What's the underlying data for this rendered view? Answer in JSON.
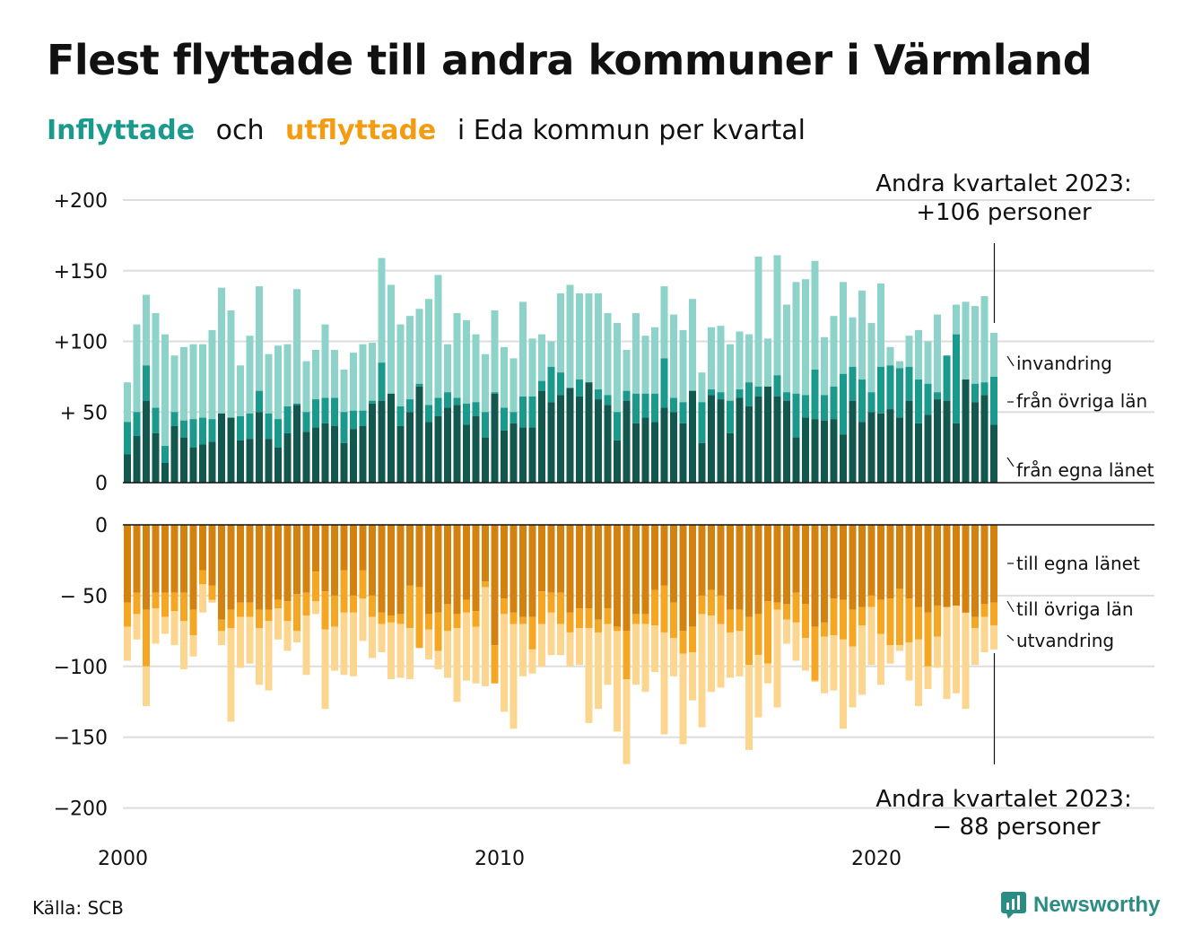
{
  "title": "Flest flyttade till andra kommuner i Värmland",
  "subtitle": {
    "part1": "Inflyttade",
    "part2": "och",
    "part3": "utflyttade",
    "part4": "i Eda kommun per kvartal"
  },
  "source": "Källa: SCB",
  "brand": "Newsworthy",
  "colors": {
    "in_egna": "#13584f",
    "in_ovriga": "#1a9a8c",
    "in_invandring": "#8ed3c9",
    "ut_egna": "#d4820f",
    "ut_ovriga": "#f5a623",
    "ut_utvandring": "#fcd68e",
    "grid": "#dddddd",
    "accent_in": "#1a9a8c",
    "accent_ut": "#f39c12",
    "brand": "#2a8c82"
  },
  "chart_data": [
    {
      "type": "bar",
      "stacked": true,
      "x_label_years": [
        "2000",
        "2010",
        "2020"
      ],
      "y_ticks": [
        "0",
        "+ 50",
        "+100",
        "+150",
        "+200"
      ],
      "ylim": [
        0,
        200
      ],
      "grid": true,
      "series_labels": [
        "invandring",
        "från övriga län",
        "från egna länet"
      ],
      "annotation": [
        "Andra kvartalet 2023:",
        "+106 personer"
      ],
      "series": [
        {
          "name": "från egna länet",
          "values": [
            20,
            33,
            58,
            35,
            14,
            40,
            32,
            25,
            27,
            29,
            49,
            46,
            30,
            31,
            50,
            31,
            25,
            35,
            55,
            36,
            39,
            42,
            40,
            28,
            38,
            40,
            56,
            58,
            63,
            40,
            50,
            68,
            43,
            47,
            53,
            55,
            41,
            47,
            32,
            63,
            37,
            42,
            39,
            39,
            65,
            57,
            62,
            67,
            61,
            71,
            59,
            55,
            30,
            58,
            42,
            46,
            43,
            53,
            50,
            42,
            65,
            28,
            62,
            59,
            35,
            60,
            54,
            61,
            68,
            61,
            58,
            32,
            46,
            45,
            44,
            45,
            34,
            58,
            43,
            50,
            49,
            52,
            46,
            58,
            42,
            48,
            59,
            58,
            42,
            73,
            57,
            62,
            41
          ],
          "series_cum_ovriga": [
            43,
            50,
            83,
            53,
            26,
            50,
            44,
            45,
            46,
            45,
            49,
            46,
            47,
            49,
            65,
            49,
            45,
            54,
            56,
            50,
            59,
            60,
            60,
            50,
            51,
            51,
            58,
            85,
            63,
            54,
            59,
            70,
            55,
            60,
            64,
            60,
            56,
            57,
            50,
            64,
            53,
            50,
            61,
            61,
            72,
            82,
            78,
            67,
            73,
            71,
            66,
            62,
            50,
            65,
            63,
            63,
            63,
            88,
            60,
            57,
            65,
            57,
            66,
            64,
            58,
            66,
            71,
            68,
            68,
            76,
            64,
            63,
            62,
            80,
            62,
            68,
            77,
            82,
            73,
            64,
            82,
            83,
            81,
            82,
            73,
            70,
            64,
            90,
            105,
            62,
            70,
            71,
            75
          ]
        },
        {
          "name": "från övriga län",
          "values": []
        },
        {
          "name": "invandring",
          "totals": [
            71,
            112,
            133,
            120,
            105,
            90,
            96,
            98,
            98,
            108,
            138,
            122,
            83,
            104,
            139,
            91,
            97,
            98,
            137,
            86,
            94,
            112,
            94,
            80,
            92,
            98,
            99,
            159,
            140,
            112,
            118,
            123,
            130,
            147,
            98,
            120,
            115,
            105,
            91,
            122,
            96,
            88,
            128,
            102,
            105,
            100,
            134,
            140,
            134,
            134,
            134,
            120,
            113,
            94,
            120,
            104,
            110,
            139,
            119,
            108,
            130,
            78,
            110,
            111,
            98,
            107,
            105,
            160,
            102,
            161,
            126,
            142,
            144,
            157,
            103,
            118,
            142,
            117,
            136,
            113,
            141,
            96,
            86,
            104,
            108,
            100,
            119,
            89,
            126,
            128,
            125,
            132,
            106
          ]
        }
      ]
    },
    {
      "type": "bar",
      "stacked": true,
      "y_ticks": [
        "0",
        "− 50",
        "−100",
        "−150",
        "−200"
      ],
      "ylim": [
        -200,
        0
      ],
      "grid": true,
      "series_labels": [
        "till egna länet",
        "till övriga län",
        "utvandring"
      ],
      "annotation": [
        "Andra kvartalet 2023:",
        "− 88 personer"
      ],
      "series": [
        {
          "name": "till egna länet",
          "values": [
            -55,
            -48,
            -60,
            -48,
            -48,
            -48,
            -48,
            -60,
            -32,
            -43,
            -67,
            -60,
            -55,
            -55,
            -60,
            -60,
            -53,
            -54,
            -49,
            -48,
            -33,
            -47,
            -50,
            -32,
            -50,
            -32,
            -50,
            -62,
            -64,
            -63,
            -43,
            -44,
            -63,
            -62,
            -56,
            -63,
            -53,
            -61,
            -40,
            -85,
            -52,
            -62,
            -65,
            -65,
            -47,
            -48,
            -48,
            -62,
            -59,
            -59,
            -67,
            -59,
            -72,
            -75,
            -63,
            -63,
            -46,
            -43,
            -55,
            -75,
            -72,
            -50,
            -46,
            -50,
            -60,
            -60,
            -65,
            -63,
            -54,
            -55,
            -56,
            -48,
            -56,
            -72,
            -69,
            -52,
            -53,
            -60,
            -58,
            -50,
            -53,
            -52,
            -45,
            -52,
            -58,
            -62,
            -57,
            -60,
            -60,
            -63,
            -65,
            -56,
            -55
          ],
          "cum_ovriga": [
            -72,
            -63,
            -100,
            -59,
            -65,
            -61,
            -68,
            -78,
            -42,
            -53,
            -75,
            -73,
            -65,
            -65,
            -73,
            -68,
            -59,
            -68,
            -75,
            -64,
            -54,
            -74,
            -72,
            -62,
            -62,
            -52,
            -65,
            -70,
            -69,
            -70,
            -73,
            -87,
            -74,
            -89,
            -75,
            -73,
            -62,
            -72,
            -44,
            -112,
            -63,
            -70,
            -70,
            -88,
            -70,
            -62,
            -70,
            -76,
            -73,
            -73,
            -76,
            -70,
            -75,
            -109,
            -70,
            -70,
            -71,
            -76,
            -80,
            -91,
            -90,
            -63,
            -64,
            -70,
            -76,
            -75,
            -99,
            -92,
            -98,
            -60,
            -67,
            -69,
            -80,
            -110,
            -79,
            -78,
            -81,
            -86,
            -71,
            -58,
            -77,
            -85,
            -85,
            -83,
            -81,
            -100,
            -79,
            -58,
            -57,
            -62,
            -73,
            -65,
            -71
          ]
        },
        {
          "name": "till övriga län",
          "values": []
        },
        {
          "name": "utvandring",
          "totals": [
            -96,
            -81,
            -128,
            -84,
            -77,
            -85,
            -102,
            -93,
            -62,
            -55,
            -85,
            -139,
            -101,
            -98,
            -113,
            -117,
            -81,
            -89,
            -83,
            -106,
            -63,
            -130,
            -103,
            -106,
            -107,
            -82,
            -94,
            -90,
            -109,
            -108,
            -109,
            -82,
            -95,
            -102,
            -108,
            -125,
            -110,
            -112,
            -114,
            -100,
            -132,
            -144,
            -107,
            -105,
            -100,
            -92,
            -92,
            -100,
            -99,
            -140,
            -130,
            -113,
            -146,
            -169,
            -113,
            -118,
            -104,
            -148,
            -107,
            -155,
            -124,
            -143,
            -118,
            -115,
            -108,
            -107,
            -159,
            -136,
            -112,
            -129,
            -84,
            -96,
            -103,
            -111,
            -119,
            -117,
            -144,
            -129,
            -120,
            -99,
            -113,
            -98,
            -89,
            -110,
            -128,
            -116,
            -101,
            -123,
            -119,
            -130,
            -99,
            -90,
            -88
          ]
        }
      ]
    }
  ]
}
